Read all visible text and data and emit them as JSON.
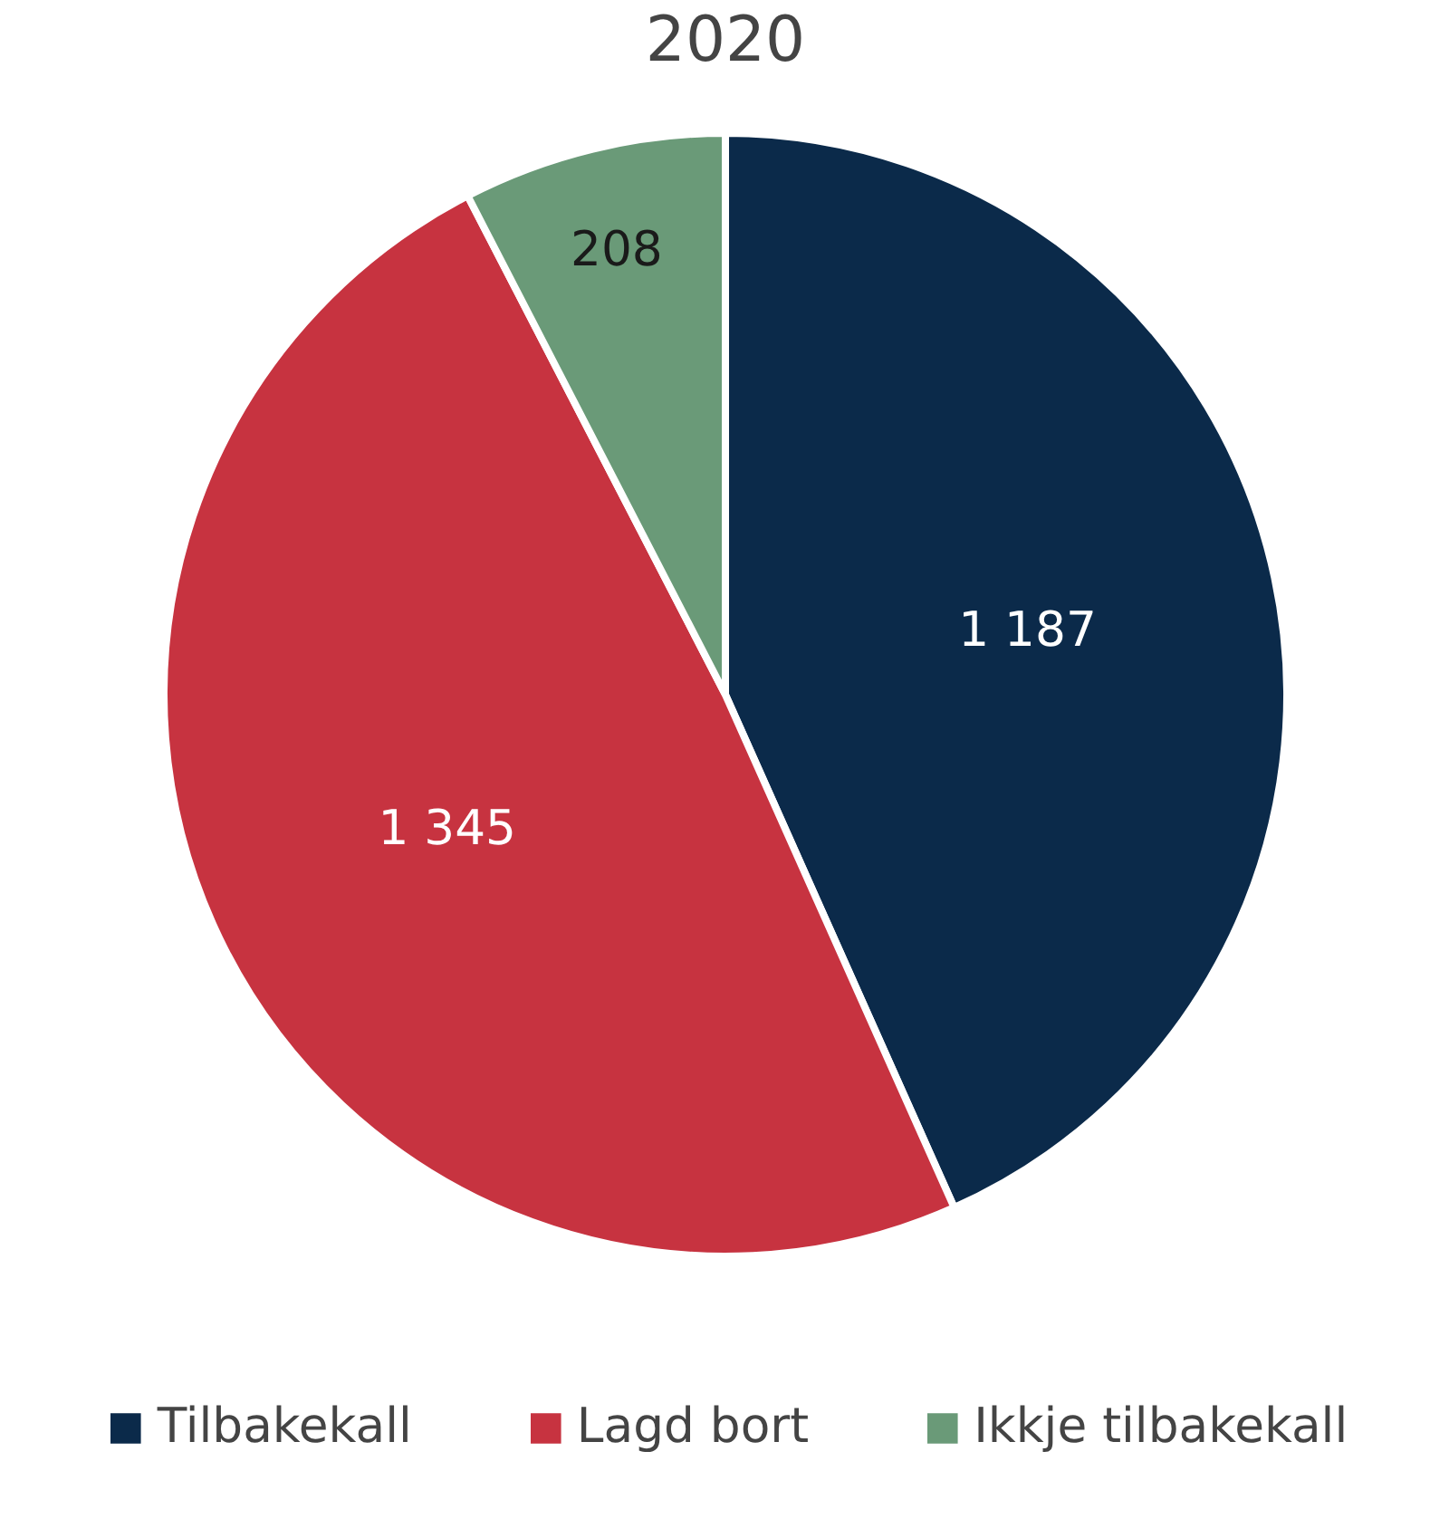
{
  "chart_data": {
    "type": "pie",
    "title": "2020",
    "categories": [
      "Tilbakekall",
      "Lagd bort",
      "Ikkje tilbakekall"
    ],
    "values": [
      1187,
      1345,
      208
    ],
    "colors": [
      "#0b2a4a",
      "#c73340",
      "#6a9a78"
    ],
    "value_labels": [
      "1 187",
      "1 345",
      "208"
    ],
    "legend": "bottom"
  }
}
